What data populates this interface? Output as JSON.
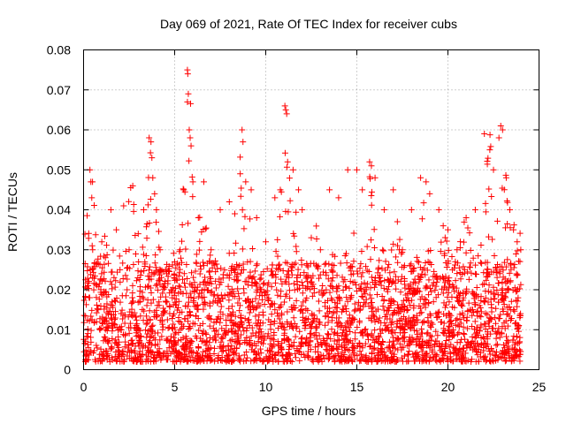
{
  "chart_data": {
    "type": "scatter",
    "title": "Day 069 of 2021, Rate Of TEC Index for receiver cubs",
    "xlabel": "GPS time / hours",
    "ylabel": "ROTI / TECUs",
    "xlim": [
      0,
      25
    ],
    "ylim": [
      0,
      0.08
    ],
    "xticks": [
      0,
      5,
      10,
      15,
      20,
      25
    ],
    "xtick_labels": [
      "0",
      "5",
      "10",
      "15",
      "20",
      "25"
    ],
    "yticks": [
      0,
      0.01,
      0.02,
      0.03,
      0.04,
      0.05,
      0.06,
      0.07,
      0.08
    ],
    "ytick_labels": [
      "0",
      "0.01",
      "0.02",
      "0.03",
      "0.04",
      "0.05",
      "0.06",
      "0.07",
      "0.08"
    ],
    "grid": true,
    "legend": "none",
    "marker": "plus",
    "color": "#ff0000",
    "series": [
      {
        "x_range": [
          0,
          24
        ],
        "points": [
          [
            0.2,
            0.004
          ],
          [
            0.3,
            0.018
          ],
          [
            0.35,
            0.05
          ],
          [
            0.4,
            0.047
          ],
          [
            0.45,
            0.043
          ],
          [
            0.5,
            0.03
          ],
          [
            0.6,
            0.012
          ],
          [
            0.8,
            0.015
          ],
          [
            1.0,
            0.032
          ],
          [
            1.2,
            0.028
          ],
          [
            1.5,
            0.04
          ],
          [
            1.8,
            0.035
          ],
          [
            2.0,
            0.025
          ],
          [
            2.2,
            0.041
          ],
          [
            2.5,
            0.03
          ],
          [
            2.7,
            0.046
          ],
          [
            3.0,
            0.034
          ],
          [
            3.3,
            0.04
          ],
          [
            3.6,
            0.058
          ],
          [
            3.7,
            0.057
          ],
          [
            3.75,
            0.053
          ],
          [
            3.8,
            0.048
          ],
          [
            3.9,
            0.044
          ],
          [
            4.0,
            0.04
          ],
          [
            4.2,
            0.03
          ],
          [
            4.5,
            0.025
          ],
          [
            4.8,
            0.02
          ],
          [
            5.0,
            0.027
          ],
          [
            5.3,
            0.03
          ],
          [
            5.5,
            0.045
          ],
          [
            5.7,
            0.075
          ],
          [
            5.72,
            0.074
          ],
          [
            5.75,
            0.069
          ],
          [
            5.7,
            0.067
          ],
          [
            5.8,
            0.06
          ],
          [
            5.85,
            0.058
          ],
          [
            5.9,
            0.056
          ],
          [
            6.0,
            0.047
          ],
          [
            6.3,
            0.038
          ],
          [
            6.6,
            0.047
          ],
          [
            7.0,
            0.03
          ],
          [
            7.5,
            0.04
          ],
          [
            8.0,
            0.042
          ],
          [
            8.3,
            0.039
          ],
          [
            8.6,
            0.049
          ],
          [
            8.7,
            0.06
          ],
          [
            8.75,
            0.057
          ],
          [
            8.9,
            0.047
          ],
          [
            9.2,
            0.045
          ],
          [
            9.5,
            0.038
          ],
          [
            10.0,
            0.032
          ],
          [
            10.5,
            0.043
          ],
          [
            10.8,
            0.045
          ],
          [
            11.05,
            0.066
          ],
          [
            11.1,
            0.065
          ],
          [
            11.15,
            0.064
          ],
          [
            11.2,
            0.052
          ],
          [
            11.5,
            0.05
          ],
          [
            11.8,
            0.045
          ],
          [
            12.0,
            0.04
          ],
          [
            12.5,
            0.033
          ],
          [
            13.0,
            0.03
          ],
          [
            13.5,
            0.045
          ],
          [
            14.0,
            0.043
          ],
          [
            14.5,
            0.05
          ],
          [
            15.0,
            0.05
          ],
          [
            15.3,
            0.045
          ],
          [
            15.7,
            0.052
          ],
          [
            15.8,
            0.051
          ],
          [
            16.0,
            0.048
          ],
          [
            16.5,
            0.04
          ],
          [
            17.0,
            0.045
          ],
          [
            17.5,
            0.03
          ],
          [
            18.0,
            0.04
          ],
          [
            18.5,
            0.048
          ],
          [
            18.8,
            0.047
          ],
          [
            19.0,
            0.044
          ],
          [
            19.5,
            0.04
          ],
          [
            20.0,
            0.035
          ],
          [
            20.5,
            0.03
          ],
          [
            21.0,
            0.038
          ],
          [
            21.5,
            0.04
          ],
          [
            22.0,
            0.059
          ],
          [
            22.3,
            0.055
          ],
          [
            22.5,
            0.05
          ],
          [
            22.8,
            0.058
          ],
          [
            22.9,
            0.061
          ],
          [
            23.0,
            0.06
          ],
          [
            23.2,
            0.048
          ],
          [
            23.4,
            0.04
          ],
          [
            23.6,
            0.035
          ],
          [
            23.8,
            0.032
          ],
          [
            24.0,
            0.03
          ]
        ],
        "baseline": {
          "min": 0.002,
          "typical": 0.01,
          "max": 0.03
        },
        "peaks": [
          [
            0.4,
            0.05
          ],
          [
            1.0,
            0.035
          ],
          [
            2.6,
            0.046
          ],
          [
            3.7,
            0.058
          ],
          [
            4.0,
            0.045
          ],
          [
            5.75,
            0.075
          ],
          [
            6.6,
            0.047
          ],
          [
            8.7,
            0.06
          ],
          [
            9.0,
            0.048
          ],
          [
            11.1,
            0.066
          ],
          [
            11.5,
            0.05
          ],
          [
            12.8,
            0.036
          ],
          [
            14.5,
            0.05
          ],
          [
            15.8,
            0.052
          ],
          [
            17.0,
            0.045
          ],
          [
            18.8,
            0.048
          ],
          [
            19.6,
            0.04
          ],
          [
            21.0,
            0.04
          ],
          [
            22.3,
            0.059
          ],
          [
            23.0,
            0.061
          ],
          [
            23.7,
            0.045
          ]
        ]
      }
    ]
  }
}
